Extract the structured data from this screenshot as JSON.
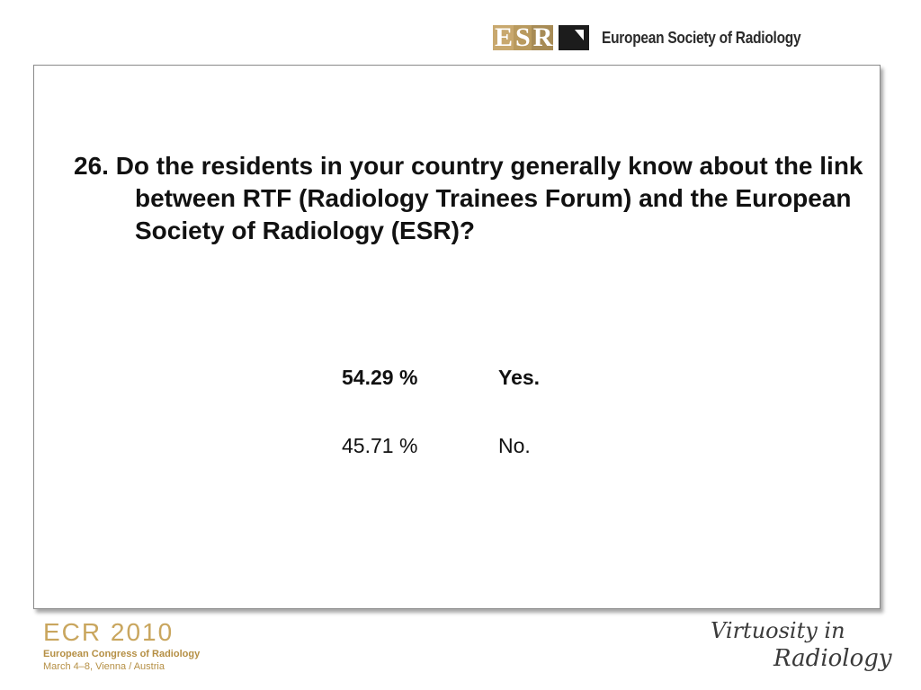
{
  "header": {
    "logo_letters": [
      "E",
      "S",
      "R"
    ],
    "logo_text": "European Society of Radiology",
    "colors": {
      "logo_gold": "#c8a86e",
      "logo_dark": "#1c1c1c"
    }
  },
  "slide": {
    "question": "26. Do the residents in your country generally know about the link between RTF (Radiology Trainees Forum) and the European Society of Radiology (ESR)?",
    "answers": [
      {
        "percent": "54.29 %",
        "label": "Yes."
      },
      {
        "percent": "45.71 %",
        "label": "No."
      }
    ]
  },
  "footer": {
    "ecr_title": "ECR 2010",
    "ecr_subtitle": "European Congress of Radiology",
    "ecr_date": "March 4–8, Vienna / Austria",
    "motto_line1": "Virtuosity in",
    "motto_line2": "Radiology",
    "colors": {
      "ecr_gold": "#c9a65e"
    }
  }
}
